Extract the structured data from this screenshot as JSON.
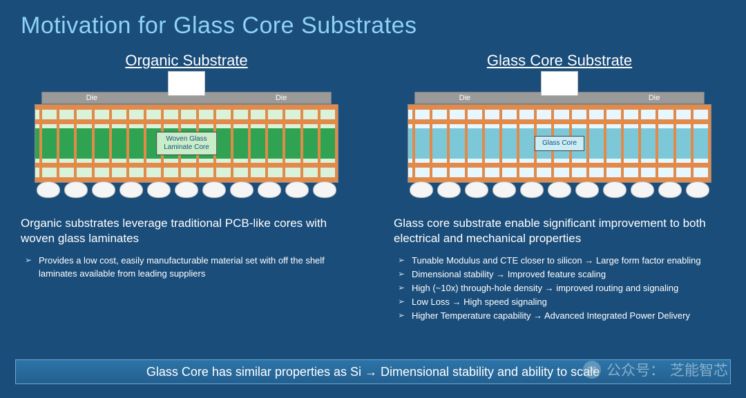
{
  "title": "Motivation for Glass Core Substrates",
  "columns": {
    "organic": {
      "heading": "Organic Substrate",
      "diagram": {
        "die_label": "Die",
        "core_label": "Woven Glass\nLaminate Core",
        "colors": {
          "copper": "#e18a4a",
          "dielectric": "#d9f2d9",
          "core": "#2fa351",
          "die": "#9a9a9a",
          "ball": "#f5f5f5"
        },
        "ball_count": 11,
        "via_count": 18
      },
      "description": "Organic substrates leverage traditional PCB-like cores with woven glass laminates",
      "bullets": [
        "Provides a low cost, easily manufacturable material set with off the shelf laminates available from leading suppliers"
      ]
    },
    "glass": {
      "heading": "Glass Core Substrate",
      "diagram": {
        "die_label": "Die",
        "core_label": "Glass Core",
        "colors": {
          "copper": "#e18a4a",
          "dielectric": "#e6f7ff",
          "core": "#7cc8d8",
          "die": "#9a9a9a",
          "ball": "#f5f5f5"
        },
        "ball_count": 11,
        "via_count": 18
      },
      "description": "Glass core substrate enable significant improvement to both electrical and mechanical properties",
      "bullets": [
        "Tunable Modulus and CTE closer to silicon → Large form factor enabling",
        "Dimensional stability → Improved feature scaling",
        "High (~10x) through-hole density → improved routing and signaling",
        "Low Loss → High speed signaling",
        "Higher Temperature capability → Advanced Integrated Power Delivery"
      ]
    }
  },
  "bottom_bar": "Glass Core has similar properties as Si → Dimensional stability and ability to scale",
  "watermark": {
    "prefix": "公众号：",
    "name": "芝能智芯"
  },
  "theme": {
    "background": "#1a4d7a",
    "title_color": "#8fd3f4",
    "text_color": "#ffffff",
    "bar_gradient_top": "#2d74a8",
    "bar_gradient_bottom": "#236090"
  }
}
